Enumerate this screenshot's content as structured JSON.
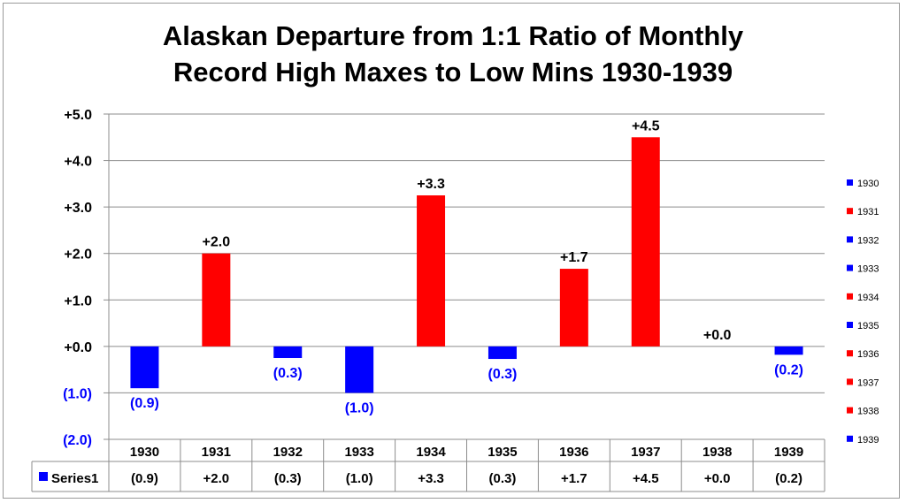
{
  "chart_data": {
    "type": "bar",
    "title_lines": [
      "Alaskan Departure from 1:1 Ratio of Monthly",
      "Record High Maxes to Low Mins 1930-1939"
    ],
    "categories": [
      "1930",
      "1931",
      "1932",
      "1933",
      "1934",
      "1935",
      "1936",
      "1937",
      "1938",
      "1939"
    ],
    "series": [
      {
        "name": "Series1",
        "values": [
          -0.9,
          2.0,
          -0.25,
          -1.0,
          3.25,
          -0.27,
          1.67,
          4.5,
          0.0,
          -0.18
        ],
        "labels": [
          "(0.9)",
          "+2.0",
          "(0.3)",
          "(1.0)",
          "+3.3",
          "(0.3)",
          "+1.7",
          "+4.5",
          "+0.0",
          "(0.2)"
        ]
      }
    ],
    "ylim": [
      -2,
      5
    ],
    "yticks": [
      5,
      4,
      3,
      2,
      1,
      0,
      -1,
      -2
    ],
    "ytick_labels": [
      "+5.0",
      "+4.0",
      "+3.0",
      "+2.0",
      "+1.0",
      "+0.0",
      "(1.0)",
      "(2.0)"
    ],
    "positive_color": "#ff0000",
    "negative_color": "#0000ff",
    "grid": true,
    "legend_position": "right",
    "data_table": true
  }
}
